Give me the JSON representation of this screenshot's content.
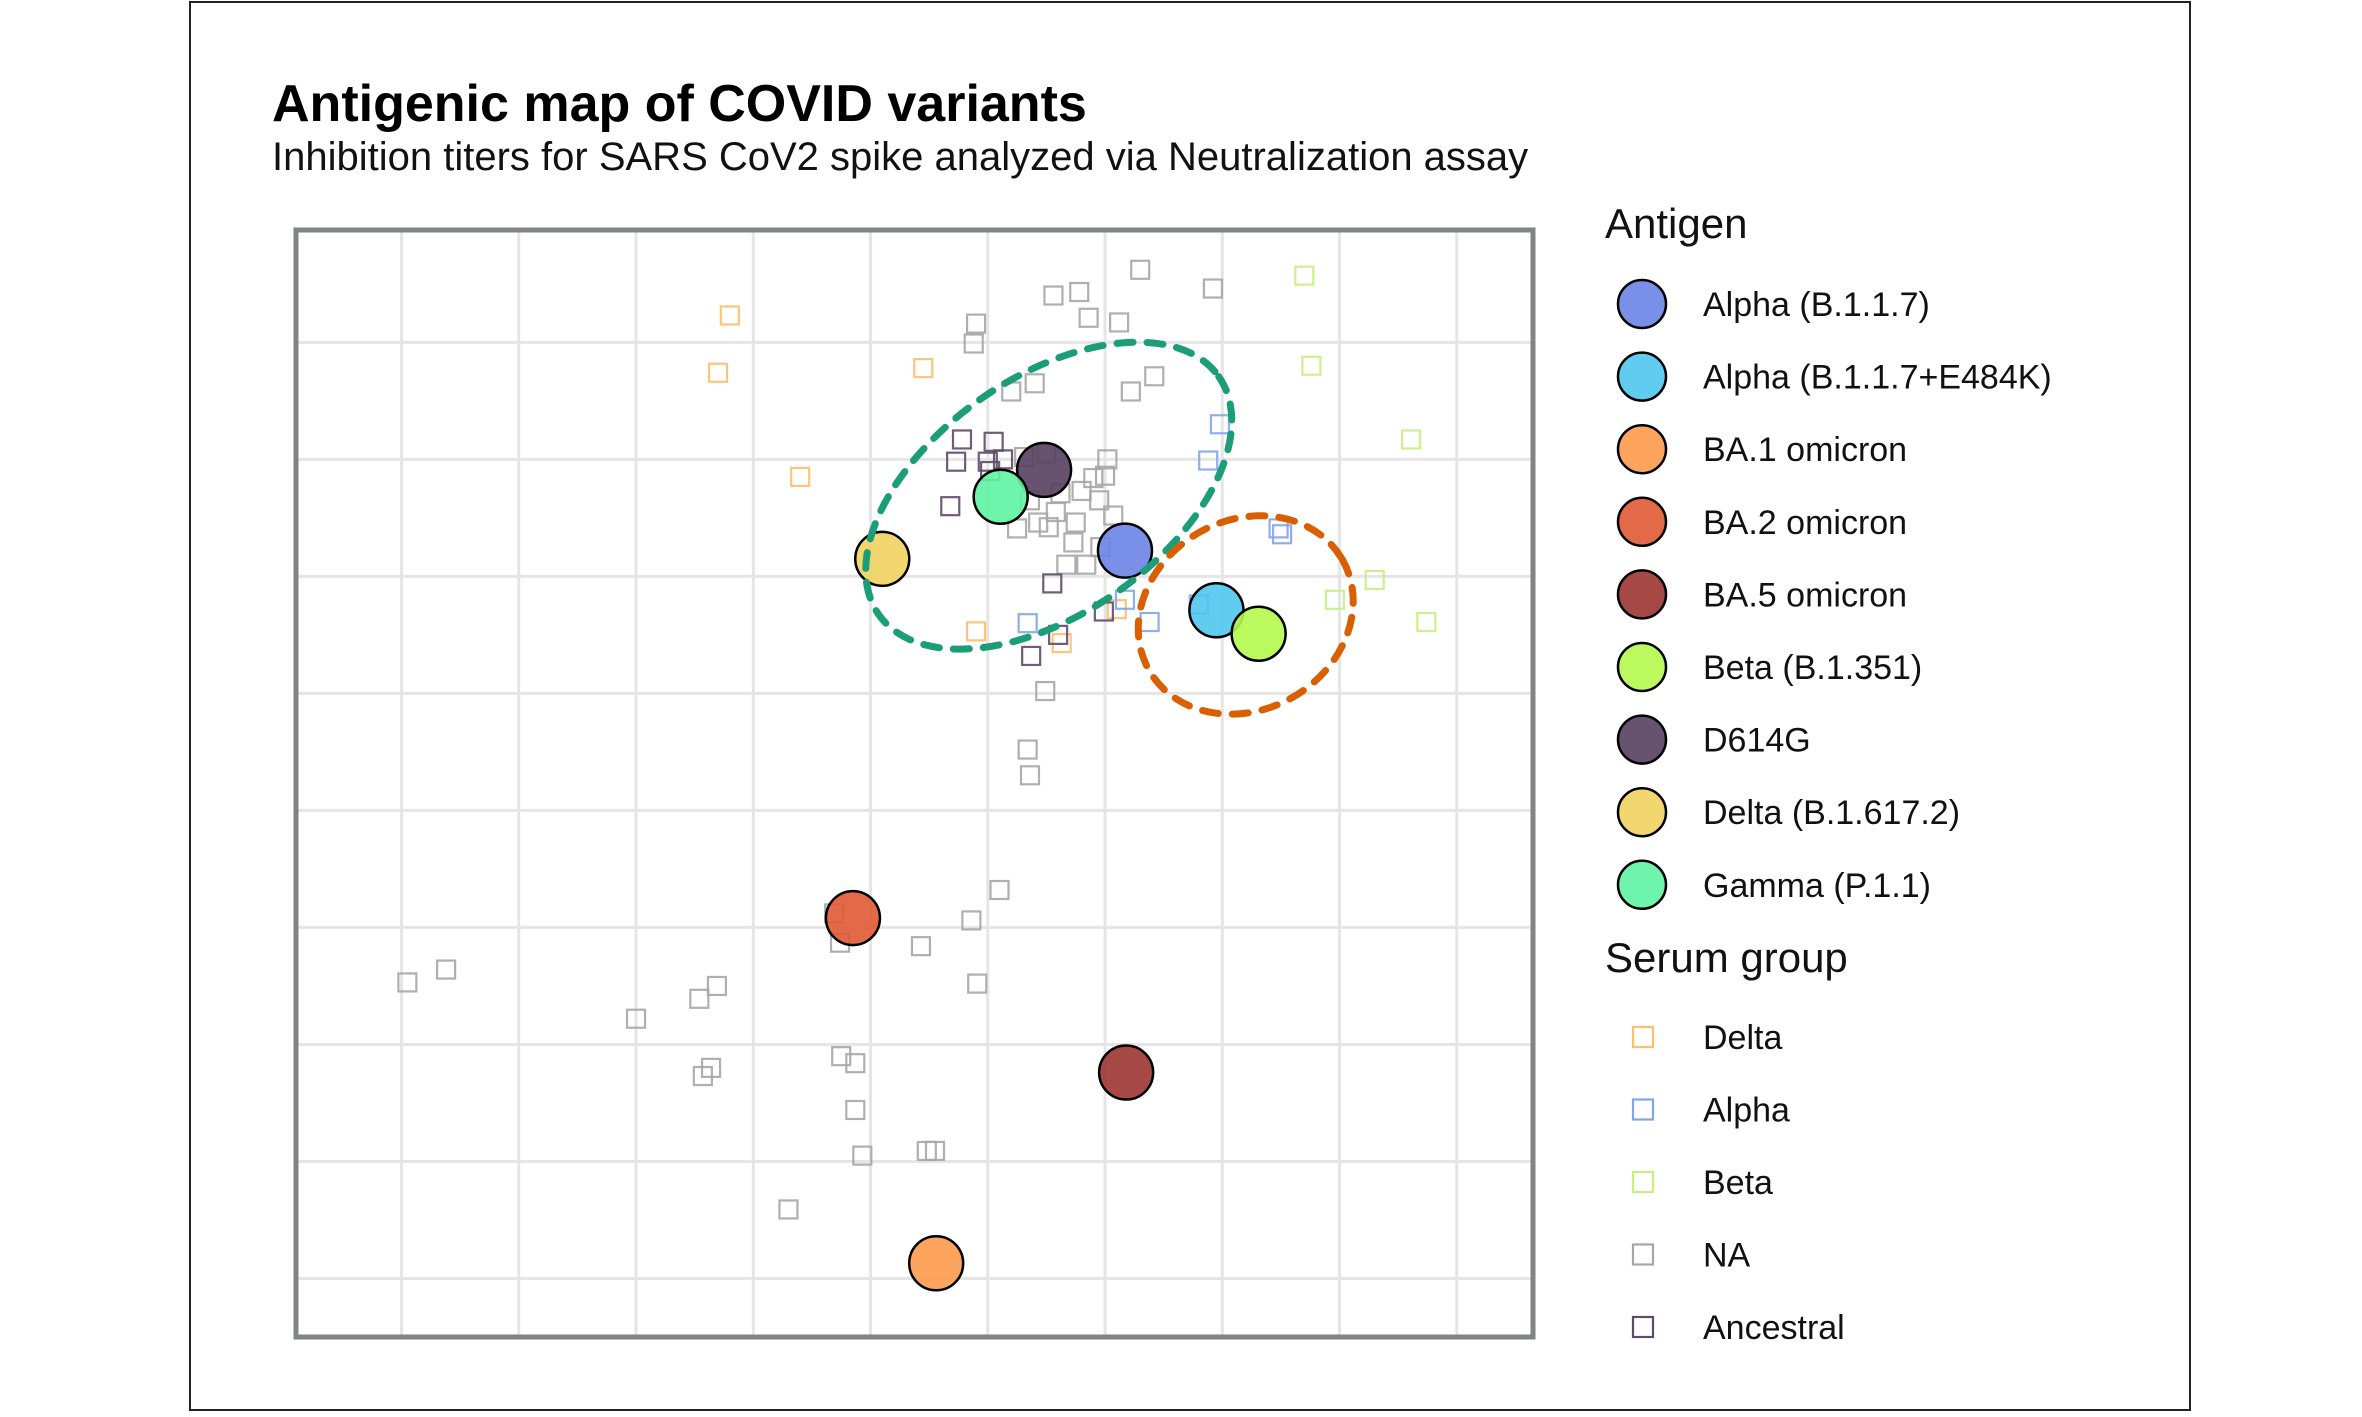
{
  "title": "Antigenic map of COVID variants",
  "subtitle": "Inhibition titers for SARS CoV2 spike analyzed via Neutralization assay",
  "chart_data": {
    "type": "scatter",
    "title": "Antigenic map of COVID variants",
    "subtitle": "Inhibition titers for SARS CoV2 spike analyzed via Neutralization assay",
    "xlabel": "",
    "ylabel": "",
    "xlim": [
      -0.9,
      9.65
    ],
    "ylim": [
      -0.5,
      8.96
    ],
    "grid": true,
    "axis_ticks_labeled": false,
    "legend_position": "right",
    "antigen_legend_title": "Antigen",
    "serum_legend_title": "Serum group",
    "antigens": [
      {
        "name": "Alpha (B.1.1.7)",
        "color": "#6b84e6",
        "x": 6.17,
        "y": 6.22
      },
      {
        "name": "Alpha (B.1.1.7+E484K)",
        "color": "#4ec6ee",
        "x": 6.95,
        "y": 5.71
      },
      {
        "name": "BA.1 omicron",
        "color": "#fd9a4c",
        "x": 4.56,
        "y": 0.13
      },
      {
        "name": "BA.2 omicron",
        "color": "#e05a35",
        "x": 3.85,
        "y": 3.08
      },
      {
        "name": "BA.5 omicron",
        "color": "#9c3532",
        "x": 6.18,
        "y": 1.76
      },
      {
        "name": "Beta (B.1.351)",
        "color": "#b5f84c",
        "x": 7.31,
        "y": 5.51
      },
      {
        "name": "D614G",
        "color": "#57405f",
        "x": 5.48,
        "y": 6.91
      },
      {
        "name": "Delta (B.1.617.2)",
        "color": "#f0d35e",
        "x": 4.1,
        "y": 6.15
      },
      {
        "name": "Gamma (P.1.1)",
        "color": "#5ef3a2",
        "x": 5.11,
        "y": 6.68
      }
    ],
    "serum_groups": [
      {
        "name": "Delta",
        "color": "#fbbf6e",
        "points": [
          [
            2.8,
            8.23
          ],
          [
            2.7,
            7.74
          ],
          [
            3.4,
            6.85
          ],
          [
            4.45,
            7.78
          ],
          [
            4.9,
            5.53
          ],
          [
            5.63,
            5.43
          ],
          [
            6.1,
            5.72
          ]
        ]
      },
      {
        "name": "Alpha",
        "color": "#82a5ea",
        "points": [
          [
            6.98,
            7.3
          ],
          [
            6.88,
            6.99
          ],
          [
            7.48,
            6.41
          ],
          [
            7.51,
            6.36
          ],
          [
            6.38,
            5.61
          ],
          [
            5.34,
            5.6
          ],
          [
            6.17,
            5.8
          ],
          [
            6.8,
            5.76
          ]
        ]
      },
      {
        "name": "Beta",
        "color": "#c6f080",
        "points": [
          [
            7.7,
            8.57
          ],
          [
            7.76,
            7.8
          ],
          [
            8.61,
            7.17
          ],
          [
            8.3,
            5.97
          ],
          [
            7.96,
            5.8
          ],
          [
            8.74,
            5.61
          ]
        ]
      },
      {
        "name": "NA",
        "color": "#a6a6a6",
        "points": [
          [
            6.3,
            8.62
          ],
          [
            6.92,
            8.46
          ],
          [
            5.56,
            8.4
          ],
          [
            5.78,
            8.43
          ],
          [
            5.86,
            8.21
          ],
          [
            6.12,
            8.17
          ],
          [
            4.9,
            8.16
          ],
          [
            4.88,
            7.99
          ],
          [
            6.42,
            7.71
          ],
          [
            6.22,
            7.58
          ],
          [
            5.4,
            7.65
          ],
          [
            5.2,
            7.58
          ],
          [
            5.5,
            7.05
          ],
          [
            5.62,
            6.71
          ],
          [
            5.36,
            6.65
          ],
          [
            5.58,
            6.55
          ],
          [
            5.52,
            6.42
          ],
          [
            5.73,
            6.29
          ],
          [
            5.67,
            6.1
          ],
          [
            5.84,
            6.1
          ],
          [
            5.96,
            6.25
          ],
          [
            5.25,
            6.41
          ],
          [
            5.43,
            6.46
          ],
          [
            5.75,
            6.46
          ],
          [
            5.8,
            6.73
          ],
          [
            5.9,
            6.84
          ],
          [
            5.95,
            6.65
          ],
          [
            6.07,
            6.52
          ],
          [
            5.31,
            7.02
          ],
          [
            6.0,
            6.86
          ],
          [
            6.02,
            7.0
          ],
          [
            5.49,
            5.02
          ],
          [
            5.34,
            4.52
          ],
          [
            5.36,
            4.3
          ],
          [
            5.1,
            3.32
          ],
          [
            4.86,
            3.06
          ],
          [
            4.91,
            2.52
          ],
          [
            3.69,
            3.12
          ],
          [
            3.74,
            2.87
          ],
          [
            4.43,
            2.84
          ],
          [
            0.05,
            2.53
          ],
          [
            0.38,
            2.64
          ],
          [
            2.0,
            2.22
          ],
          [
            2.54,
            2.39
          ],
          [
            2.69,
            2.5
          ],
          [
            2.64,
            1.8
          ],
          [
            2.57,
            1.73
          ],
          [
            3.75,
            1.9
          ],
          [
            3.87,
            1.84
          ],
          [
            3.87,
            1.44
          ],
          [
            3.93,
            1.05
          ],
          [
            4.48,
            1.09
          ],
          [
            4.55,
            1.09
          ],
          [
            3.3,
            0.59
          ]
        ]
      },
      {
        "name": "Ancestral",
        "color": "#5e4a6b",
        "points": [
          [
            4.78,
            7.17
          ],
          [
            4.73,
            6.98
          ],
          [
            5.0,
            6.98
          ],
          [
            4.68,
            6.6
          ],
          [
            5.37,
            5.32
          ],
          [
            5.6,
            5.5
          ],
          [
            5.55,
            5.94
          ],
          [
            5.05,
            7.15
          ],
          [
            5.13,
            7.0
          ],
          [
            5.02,
            6.9
          ],
          [
            5.99,
            5.7
          ]
        ]
      }
    ],
    "annotations": [
      {
        "type": "dashed-ellipse",
        "color": "#1b9e77",
        "cx": 5.52,
        "cy": 6.69,
        "rx": 1.77,
        "ry": 1.01,
        "angle_deg": -35
      },
      {
        "type": "dashed-ellipse",
        "color": "#d95f02",
        "cx": 7.2,
        "cy": 5.67,
        "rx": 0.95,
        "ry": 0.81,
        "angle_deg": -30
      }
    ]
  }
}
